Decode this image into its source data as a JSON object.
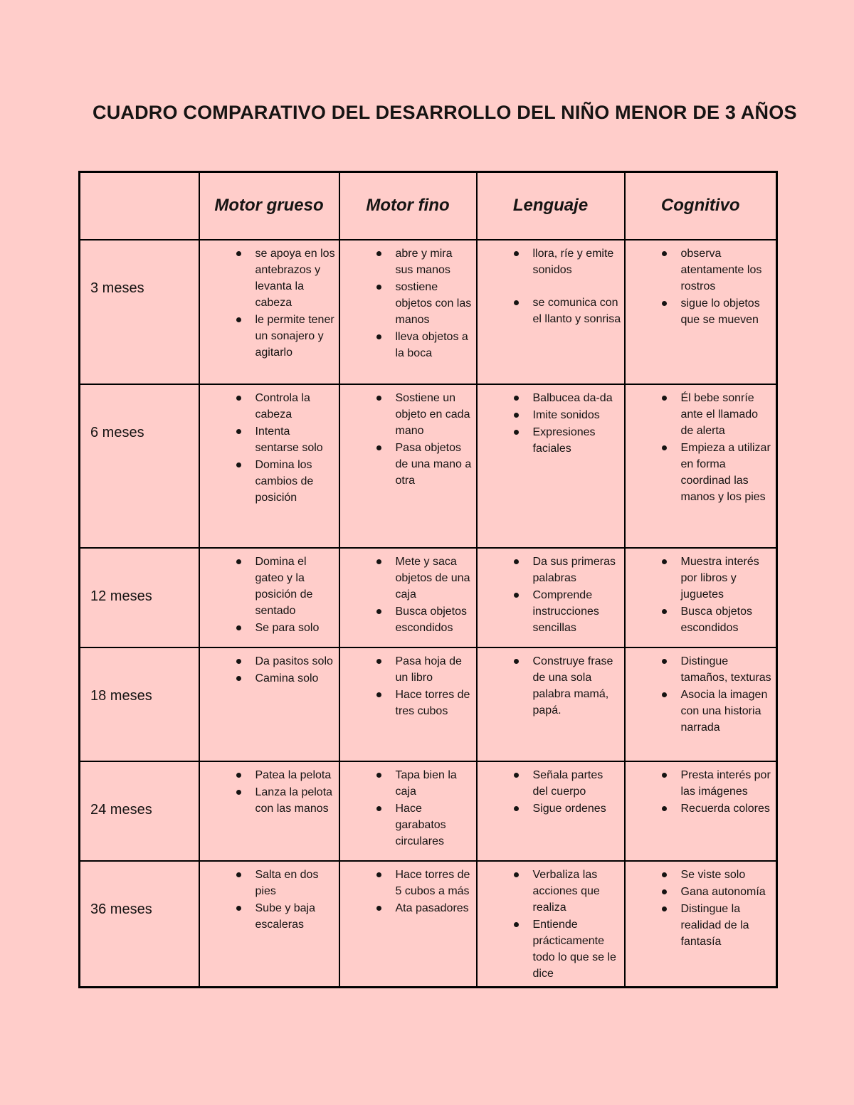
{
  "page": {
    "title": "CUADRO COMPARATIVO DEL DESARROLLO DEL NIÑO MENOR DE 3 AÑOS"
  },
  "colors": {
    "background": "#ffcdca",
    "border": "#000000",
    "text": "#161413"
  },
  "table": {
    "corner_label": "",
    "columns": [
      "Motor grueso",
      "Motor fino",
      "Lenguaje",
      "Cognitivo"
    ],
    "rows": [
      {
        "label": "3 meses",
        "cells": [
          {
            "items": [
              "se apoya en los antebrazos y levanta la cabeza",
              "le permite tener un sonajero y agitarlo"
            ]
          },
          {
            "items": [
              "abre y mira sus manos",
              "sostiene objetos con las manos",
              "lleva objetos a la boca"
            ]
          },
          {
            "items": [
              "llora, ríe y emite sonidos",
              {
                "text": "se comunica con el llanto y sonrisa",
                "spaced": true
              }
            ]
          },
          {
            "items": [
              "observa atentamente los rostros",
              "sigue lo objetos que se mueven"
            ]
          }
        ]
      },
      {
        "label": "6 meses",
        "cells": [
          {
            "items": [
              "Controla la cabeza",
              "Intenta sentarse solo",
              "Domina los cambios de posición"
            ]
          },
          {
            "items": [
              "Sostiene un objeto en cada mano",
              "Pasa objetos de una mano a otra"
            ]
          },
          {
            "items": [
              "Balbucea da-da",
              "Imite sonidos",
              "Expresiones faciales"
            ]
          },
          {
            "items": [
              "Él bebe sonríe ante el llamado de alerta",
              "Empieza a utilizar en forma coordinad las manos y los pies"
            ]
          }
        ]
      },
      {
        "label": "12 meses",
        "cells": [
          {
            "items": [
              "Domina el gateo y la posición de sentado",
              "Se para solo"
            ]
          },
          {
            "items": [
              "Mete y saca objetos de una caja",
              "Busca objetos escondidos"
            ]
          },
          {
            "items": [
              "Da sus primeras palabras",
              "Comprende instrucciones sencillas"
            ]
          },
          {
            "items": [
              "Muestra interés por libros y juguetes",
              "Busca objetos escondidos"
            ]
          }
        ]
      },
      {
        "label": "18 meses",
        "cells": [
          {
            "items": [
              "Da pasitos solo",
              "Camina solo"
            ]
          },
          {
            "items": [
              "Pasa hoja de un libro",
              "Hace torres de tres cubos"
            ]
          },
          {
            "items": [
              "Construye frase de una sola palabra mamá, papá."
            ]
          },
          {
            "items": [
              "Distingue tamaños, texturas",
              "Asocia la imagen con una historia narrada"
            ]
          }
        ]
      },
      {
        "label": "24 meses",
        "cells": [
          {
            "items": [
              "Patea la pelota",
              "Lanza la pelota con las manos"
            ]
          },
          {
            "items": [
              "Tapa bien la caja",
              "Hace garabatos circulares"
            ]
          },
          {
            "items": [
              "Señala partes del cuerpo",
              "Sigue ordenes"
            ]
          },
          {
            "items": [
              "Presta interés por las imágenes",
              "Recuerda colores"
            ]
          }
        ]
      },
      {
        "label": "36 meses",
        "cells": [
          {
            "items": [
              "Salta en dos pies",
              "Sube y baja escaleras"
            ]
          },
          {
            "items": [
              "Hace torres de 5 cubos a más",
              "Ata pasadores"
            ]
          },
          {
            "items": [
              "Verbaliza las acciones que realiza",
              "Entiende prácticamente todo lo que se le dice"
            ]
          },
          {
            "items": [
              "Se viste solo",
              "Gana autonomía",
              "Distingue la realidad de la fantasía"
            ]
          }
        ]
      }
    ]
  }
}
